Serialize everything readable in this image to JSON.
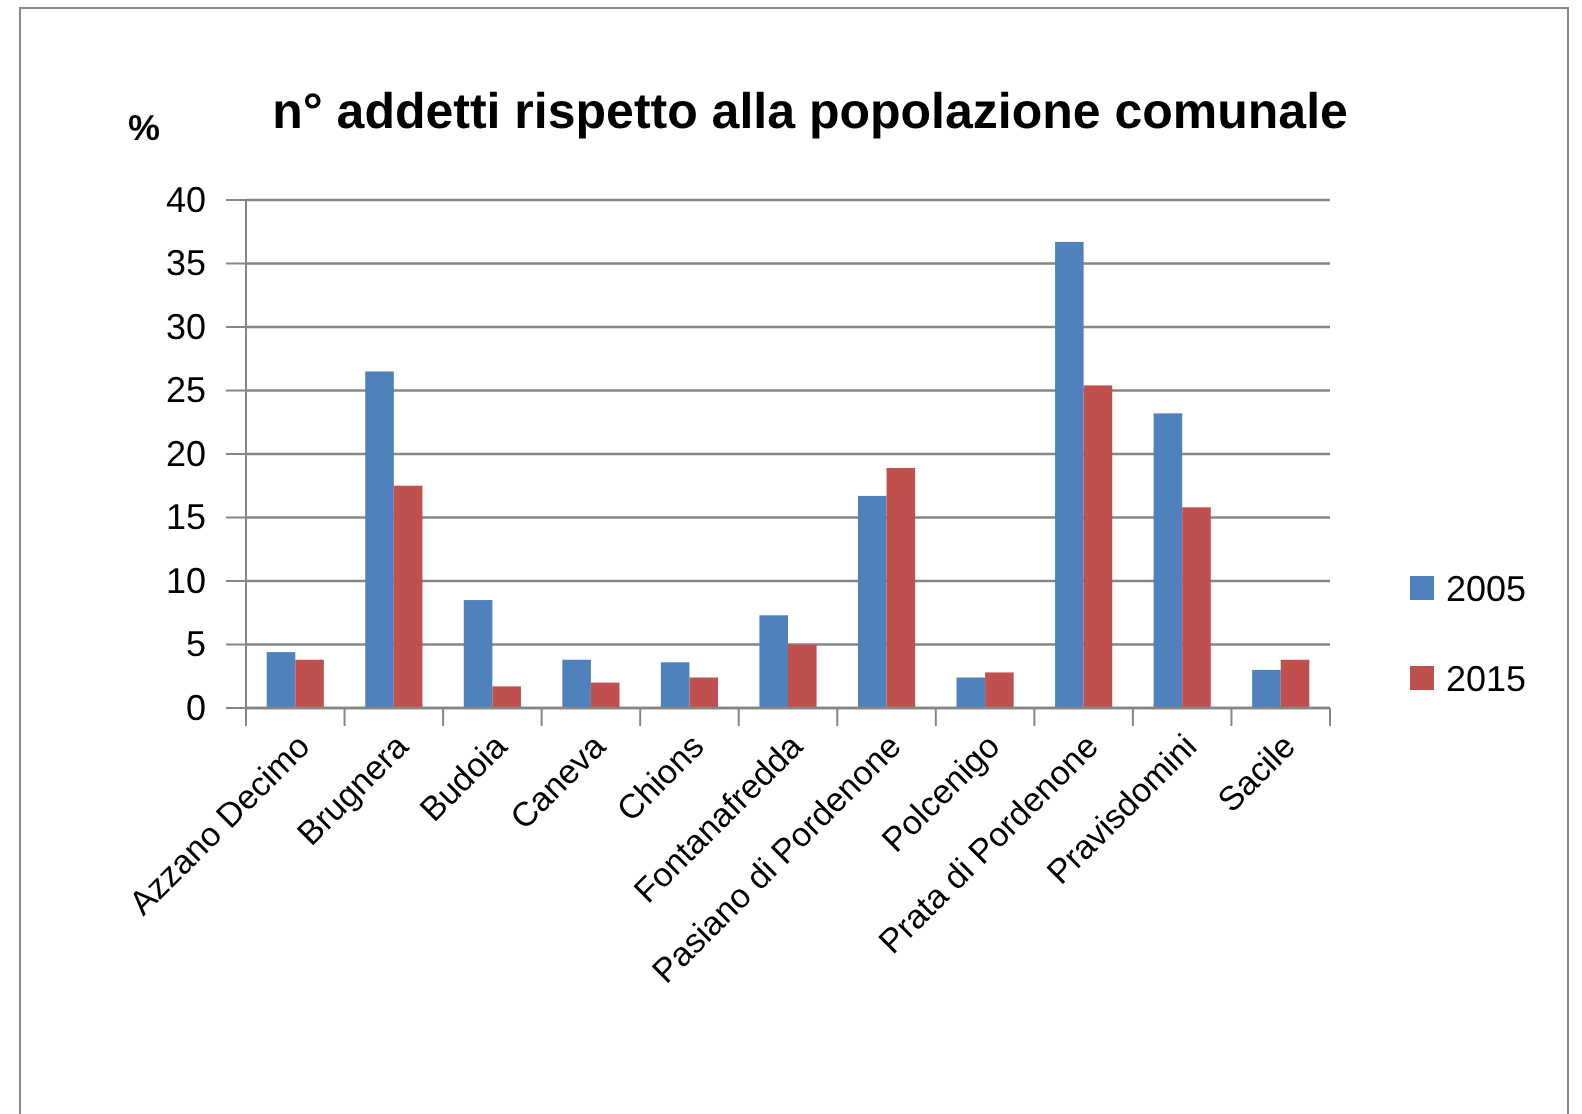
{
  "chart_data": {
    "type": "bar",
    "title": "n° addetti rispetto alla popolazione comunale",
    "ylabel": "%",
    "categories": [
      "Azzano Decimo",
      "Brugnera",
      "Budoia",
      "Caneva",
      "Chions",
      "Fontanafredda",
      "Pasiano di Pordenone",
      "Polcenigo",
      "Prata di Pordenone",
      "Pravisdomini",
      "Sacile"
    ],
    "series": [
      {
        "name": "2005",
        "color": "#4f81bd",
        "values": [
          4.4,
          26.5,
          8.5,
          3.8,
          3.6,
          7.3,
          16.7,
          2.4,
          36.7,
          23.2,
          3.0
        ]
      },
      {
        "name": "2015",
        "color": "#c0504d",
        "values": [
          3.8,
          17.5,
          1.7,
          2.0,
          2.4,
          5.0,
          18.9,
          2.8,
          25.4,
          15.8,
          3.8
        ]
      }
    ],
    "ylim": [
      0,
      40
    ],
    "yticks": [
      0,
      5,
      10,
      15,
      20,
      25,
      30,
      35,
      40
    ],
    "grid": "y",
    "legend": "right"
  }
}
